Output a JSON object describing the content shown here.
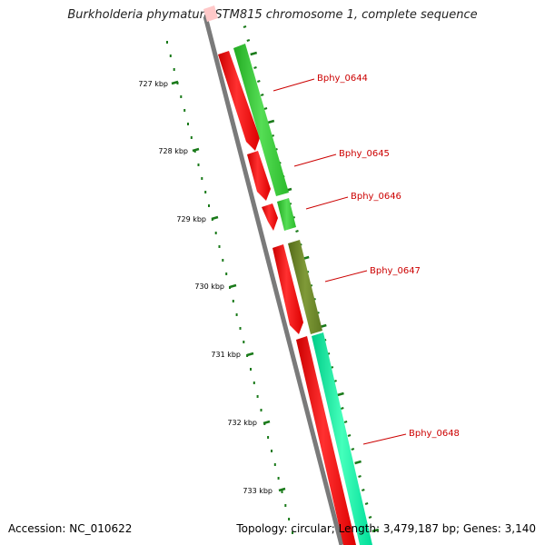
{
  "title": "Burkholderia phymatum STM815 chromosome 1, complete sequence",
  "accession_line": "Accession: NC_010622",
  "summary_line": "Topology: circular; Length: 3,479,187 bp; Genes: 3,140",
  "ticks": [
    "727 kbp",
    "728 kbp",
    "729 kbp",
    "730 kbp",
    "731 kbp",
    "732 kbp",
    "733 kbp"
  ],
  "genes": [
    "Bphy_0644",
    "Bphy_0645",
    "Bphy_0646",
    "Bphy_0647",
    "Bphy_0648"
  ],
  "colors": {
    "cds": "#ff0000",
    "gene_1": "#33cc33",
    "gene_3": "#6b8e23",
    "gene_4": "#00ee99",
    "tick": "#1a7a1a",
    "backbone": "#777777"
  }
}
